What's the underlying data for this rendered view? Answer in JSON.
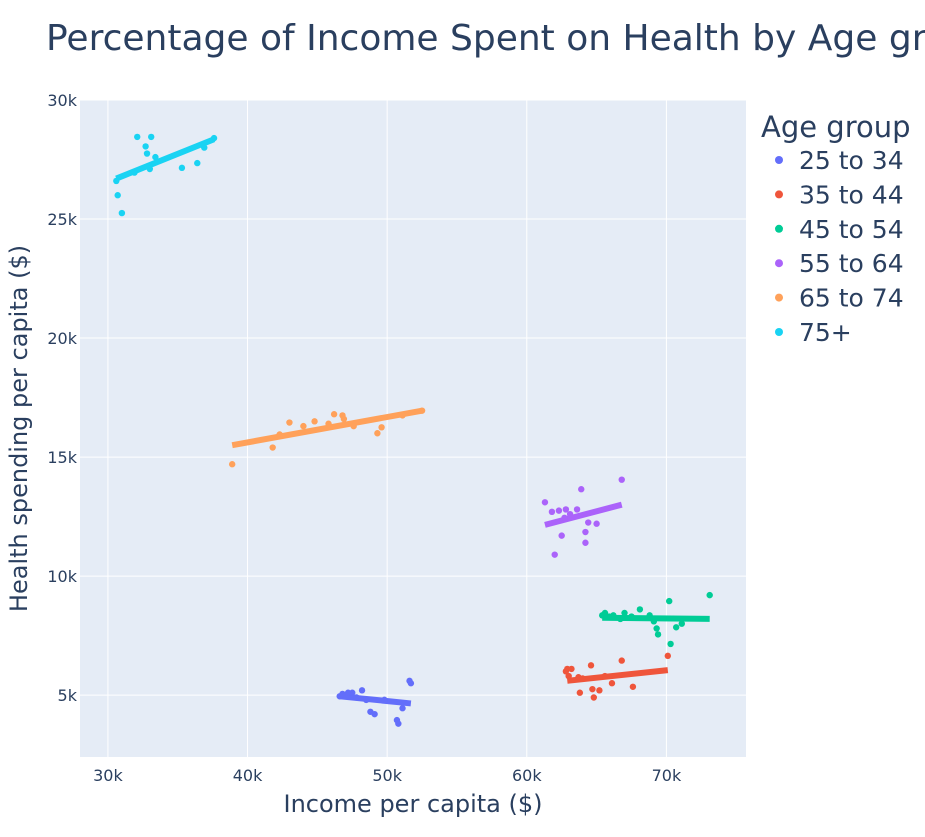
{
  "chart_data": {
    "type": "scatter",
    "title": "Percentage of Income Spent on Health by Age group",
    "xlabel": "Income per capita ($)",
    "ylabel": "Health spending per capita ($)",
    "xlim": [
      28000,
      75700
    ],
    "ylim": [
      2400,
      30000
    ],
    "xticks": [
      {
        "value": 30000,
        "label": "30k"
      },
      {
        "value": 40000,
        "label": "40k"
      },
      {
        "value": 50000,
        "label": "50k"
      },
      {
        "value": 60000,
        "label": "60k"
      },
      {
        "value": 70000,
        "label": "70k"
      }
    ],
    "yticks": [
      {
        "value": 5000,
        "label": "5k"
      },
      {
        "value": 10000,
        "label": "10k"
      },
      {
        "value": 15000,
        "label": "15k"
      },
      {
        "value": 20000,
        "label": "20k"
      },
      {
        "value": 25000,
        "label": "25k"
      },
      {
        "value": 30000,
        "label": "30k"
      }
    ],
    "grid": true,
    "plot_bgcolor": "#e5ecf6",
    "legend": {
      "title": "Age group",
      "placement": "right"
    },
    "series": [
      {
        "name": "25 to 34",
        "color": "#636efa",
        "points": [
          [
            46600,
            4950
          ],
          [
            46800,
            5050
          ],
          [
            47000,
            4950
          ],
          [
            47200,
            5100
          ],
          [
            47500,
            5100
          ],
          [
            47800,
            4900
          ],
          [
            48200,
            5200
          ],
          [
            48500,
            4800
          ],
          [
            48800,
            4300
          ],
          [
            49100,
            4200
          ],
          [
            49800,
            4800
          ],
          [
            50700,
            3950
          ],
          [
            50800,
            3800
          ],
          [
            51100,
            4450
          ],
          [
            51600,
            5600
          ],
          [
            51700,
            5500
          ]
        ],
        "trend": [
          [
            46600,
            4950
          ],
          [
            51700,
            4650
          ]
        ]
      },
      {
        "name": "35 to 44",
        "color": "#ef553b",
        "points": [
          [
            62800,
            6000
          ],
          [
            62900,
            6100
          ],
          [
            63000,
            5800
          ],
          [
            63200,
            6100
          ],
          [
            63700,
            5750
          ],
          [
            63800,
            5100
          ],
          [
            64000,
            5700
          ],
          [
            64600,
            6250
          ],
          [
            64700,
            5250
          ],
          [
            64800,
            4900
          ],
          [
            65200,
            5200
          ],
          [
            65600,
            5800
          ],
          [
            66100,
            5500
          ],
          [
            66800,
            6450
          ],
          [
            67600,
            5350
          ],
          [
            70100,
            6650
          ]
        ],
        "trend": [
          [
            62900,
            5600
          ],
          [
            70100,
            6050
          ]
        ]
      },
      {
        "name": "45 to 54",
        "color": "#00cc96",
        "points": [
          [
            65400,
            8350
          ],
          [
            65600,
            8450
          ],
          [
            65900,
            8300
          ],
          [
            66200,
            8350
          ],
          [
            66700,
            8200
          ],
          [
            67000,
            8450
          ],
          [
            67500,
            8300
          ],
          [
            68100,
            8600
          ],
          [
            68800,
            8350
          ],
          [
            69100,
            8100
          ],
          [
            69300,
            7800
          ],
          [
            69400,
            7550
          ],
          [
            70200,
            8950
          ],
          [
            70300,
            7150
          ],
          [
            70700,
            7850
          ],
          [
            71100,
            8000
          ],
          [
            73100,
            9200
          ]
        ],
        "trend": [
          [
            65400,
            8250
          ],
          [
            73100,
            8200
          ]
        ]
      },
      {
        "name": "55 to 64",
        "color": "#ab63fa",
        "points": [
          [
            61300,
            13100
          ],
          [
            61800,
            12700
          ],
          [
            62000,
            10900
          ],
          [
            62300,
            12750
          ],
          [
            62500,
            11700
          ],
          [
            62700,
            12450
          ],
          [
            62800,
            12800
          ],
          [
            63100,
            12600
          ],
          [
            63600,
            12800
          ],
          [
            63900,
            13650
          ],
          [
            64200,
            11850
          ],
          [
            64200,
            11400
          ],
          [
            64400,
            12250
          ],
          [
            65000,
            12200
          ],
          [
            66800,
            14050
          ]
        ],
        "trend": [
          [
            61300,
            12150
          ],
          [
            66800,
            13000
          ]
        ]
      },
      {
        "name": "65 to 74",
        "color": "#ffa15a",
        "points": [
          [
            38900,
            14700
          ],
          [
            41800,
            15400
          ],
          [
            42300,
            15950
          ],
          [
            43000,
            16450
          ],
          [
            44000,
            16300
          ],
          [
            44800,
            16500
          ],
          [
            45800,
            16400
          ],
          [
            46200,
            16800
          ],
          [
            46800,
            16750
          ],
          [
            46900,
            16600
          ],
          [
            47600,
            16300
          ],
          [
            49300,
            16000
          ],
          [
            49600,
            16250
          ],
          [
            51100,
            16750
          ],
          [
            52500,
            16950
          ]
        ],
        "trend": [
          [
            38900,
            15500
          ],
          [
            52500,
            16950
          ]
        ]
      },
      {
        "name": "75+",
        "color": "#19d3f3",
        "points": [
          [
            30600,
            26600
          ],
          [
            30700,
            26000
          ],
          [
            31000,
            25250
          ],
          [
            31900,
            26950
          ],
          [
            32100,
            28450
          ],
          [
            32700,
            28050
          ],
          [
            32800,
            27750
          ],
          [
            33000,
            27100
          ],
          [
            33100,
            28450
          ],
          [
            33400,
            27600
          ],
          [
            35300,
            27150
          ],
          [
            36400,
            27350
          ],
          [
            36900,
            28000
          ],
          [
            37600,
            28400
          ]
        ],
        "trend": [
          [
            30600,
            26700
          ],
          [
            37600,
            28350
          ]
        ]
      }
    ]
  }
}
